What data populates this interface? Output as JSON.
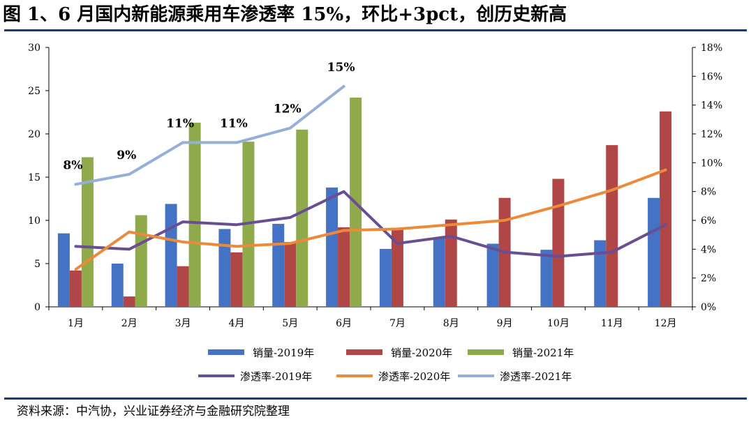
{
  "title": "图 1、6 月国内新能源乘用车渗透率 15%，环比+3pct，创历史新高",
  "source": "资料来源：中汽协，兴业证券经济与金融研究院整理",
  "chart_data": {
    "type": "bar+line",
    "categories": [
      "1月",
      "2月",
      "3月",
      "4月",
      "5月",
      "6月",
      "7月",
      "8月",
      "9月",
      "10月",
      "11月",
      "12月"
    ],
    "left_axis": {
      "min": 0,
      "max": 30,
      "ticks": [
        "0",
        "5",
        "10",
        "15",
        "20",
        "25",
        "30"
      ]
    },
    "right_axis": {
      "min": 0,
      "max": 18,
      "ticks": [
        "0%",
        "2%",
        "4%",
        "6%",
        "8%",
        "10%",
        "12%",
        "14%",
        "16%",
        "18%"
      ]
    },
    "bar_series": [
      {
        "name": "销量-2019年",
        "color": "#4472c4",
        "values": [
          8.5,
          5.0,
          11.9,
          9.0,
          9.6,
          13.8,
          6.7,
          8.0,
          7.3,
          6.6,
          7.7,
          12.6
        ]
      },
      {
        "name": "销量-2020年",
        "color": "#b04645",
        "values": [
          4.2,
          1.2,
          4.7,
          6.3,
          7.5,
          9.2,
          9.0,
          10.1,
          12.6,
          14.8,
          18.7,
          22.6
        ]
      },
      {
        "name": "销量-2021年",
        "color": "#8eaa4b",
        "values": [
          17.3,
          10.6,
          21.3,
          19.1,
          20.5,
          24.2,
          null,
          null,
          null,
          null,
          null,
          null
        ]
      }
    ],
    "line_series": [
      {
        "name": "渗透率-2019年",
        "color": "#6a4e94",
        "values": [
          4.2,
          4.0,
          5.9,
          5.7,
          6.2,
          8.0,
          4.4,
          4.9,
          3.8,
          3.5,
          3.8,
          5.7
        ]
      },
      {
        "name": "渗透率-2020年",
        "color": "#ed8a3a",
        "values": [
          2.6,
          5.2,
          4.5,
          4.2,
          4.4,
          5.3,
          5.4,
          5.7,
          6.0,
          7.0,
          8.1,
          9.5
        ]
      },
      {
        "name": "渗透率-2021年",
        "color": "#94b0d8",
        "values": [
          8.5,
          9.2,
          11.4,
          11.4,
          12.4,
          15.3,
          null,
          null,
          null,
          null,
          null,
          null
        ]
      }
    ],
    "annotations": [
      {
        "category": "1月",
        "text": "8%"
      },
      {
        "category": "2月",
        "text": "9%"
      },
      {
        "category": "3月",
        "text": "11%"
      },
      {
        "category": "4月",
        "text": "11%"
      },
      {
        "category": "5月",
        "text": "12%"
      },
      {
        "category": "6月",
        "text": "15%"
      }
    ],
    "legend_position": "bottom"
  }
}
